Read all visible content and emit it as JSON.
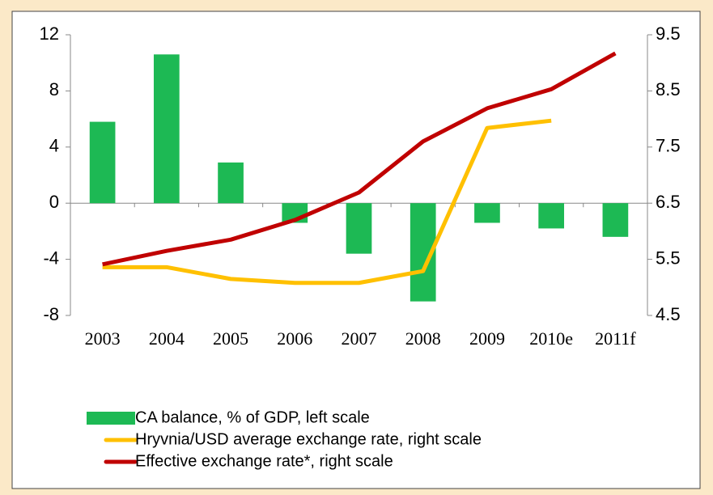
{
  "chart_data": {
    "type": "bar-line",
    "categories": [
      "2003",
      "2004",
      "2005",
      "2006",
      "2007",
      "2008",
      "2009",
      "2010e",
      "2011f"
    ],
    "series": [
      {
        "name": "CA balance, % of GDP, left scale",
        "type": "bar",
        "color": "#1db954",
        "values": [
          5.8,
          10.6,
          2.9,
          -1.4,
          -3.6,
          -7.0,
          -1.4,
          -1.8,
          -2.4
        ]
      },
      {
        "name": "Hryvnia/USD average exchange rate, right scale",
        "type": "line",
        "axis": "y2",
        "color": "#ffc000",
        "values": [
          5.36,
          5.36,
          5.15,
          5.08,
          5.08,
          5.29,
          7.84,
          7.97,
          null
        ]
      },
      {
        "name": "Effective exchange rate*, right scale",
        "type": "line",
        "axis": "y2",
        "color": "#c00000",
        "values": [
          5.41,
          5.65,
          5.85,
          6.2,
          6.69,
          7.6,
          8.19,
          8.53,
          9.17
        ]
      }
    ],
    "ylim": [
      -8,
      12
    ],
    "yticks": [
      -8,
      -4,
      0,
      4,
      8,
      12
    ],
    "y2lim": [
      4.5,
      9.5
    ],
    "y2ticks": [
      4.5,
      5.5,
      6.5,
      7.5,
      8.5,
      9.5
    ]
  }
}
